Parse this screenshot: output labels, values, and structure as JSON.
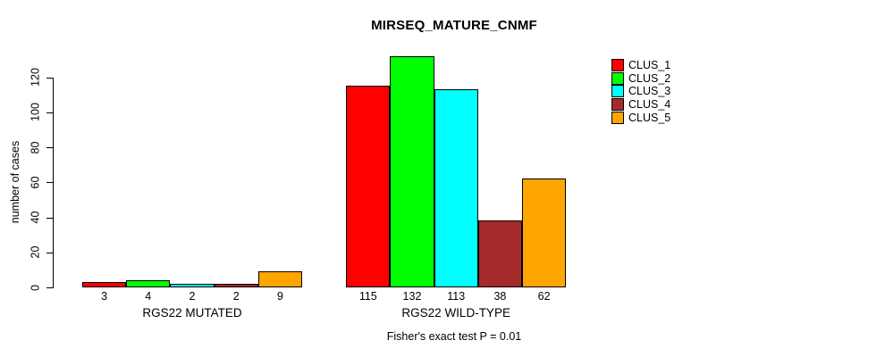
{
  "chart_data": {
    "type": "bar",
    "title": "MIRSEQ_MATURE_CNMF",
    "xlabel": "",
    "ylabel": "number of cases",
    "ylim": [
      0,
      132
    ],
    "yticks": [
      0,
      20,
      40,
      60,
      80,
      100,
      120
    ],
    "grid": false,
    "legend_position": "right-outside",
    "categories": [
      "RGS22 MUTATED",
      "RGS22 WILD-TYPE"
    ],
    "series": [
      {
        "name": "CLUS_1",
        "color": "#ff0000",
        "values": [
          3,
          115
        ]
      },
      {
        "name": "CLUS_2",
        "color": "#00ff00",
        "values": [
          4,
          132
        ]
      },
      {
        "name": "CLUS_3",
        "color": "#00ffff",
        "values": [
          2,
          113
        ]
      },
      {
        "name": "CLUS_4",
        "color": "#a52a2a",
        "values": [
          2,
          38
        ]
      },
      {
        "name": "CLUS_5",
        "color": "#ffa500",
        "values": [
          9,
          62
        ]
      }
    ],
    "annotation": "Fisher's exact test P = 0.01"
  },
  "colors": {
    "background": "#ffffff",
    "axis": "#000000",
    "text": "#000000",
    "bar_border": "#000000"
  }
}
